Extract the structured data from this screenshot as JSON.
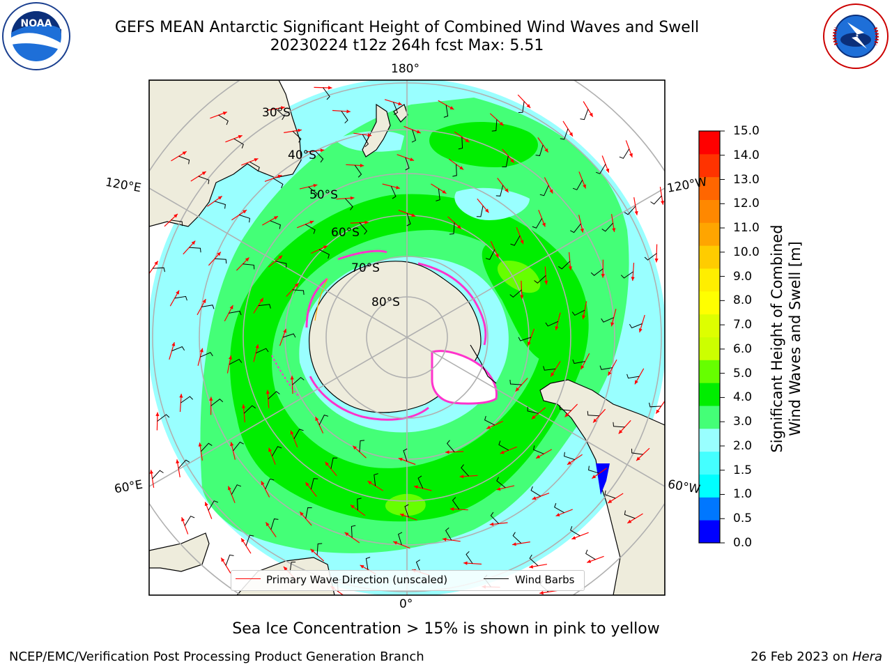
{
  "title": {
    "line1": "GEFS MEAN Antarctic Significant Height of Combined Wind Waves and Swell",
    "line2": "20230224 t12z 264h fcst   Max: 5.51"
  },
  "logos": {
    "left": {
      "name": "NOAA",
      "ring_text": "NATIONAL OCEANIC AND ATMOSPHERIC ADMINISTRATION · U.S. DEPARTMENT OF COMMERCE"
    },
    "right": {
      "name": "NATIONAL WEATHER SERVICE"
    }
  },
  "map": {
    "projection": "south polar stereographic",
    "meridian_labels": {
      "top": "180°",
      "bottom": "0°",
      "upper_left": "120°E",
      "lower_left": "60°E",
      "upper_right": "120°W",
      "lower_right": "60°W"
    },
    "parallel_labels": [
      "30°S",
      "40°S",
      "50°S",
      "60°S",
      "70°S",
      "80°S"
    ],
    "colors": {
      "land": "#eeecdc",
      "ocean_background": "#ffffff",
      "grid": "#b0b0b0",
      "wave_arrow": "#ff0000",
      "wind_barb": "#000000",
      "sea_ice": "#ff33cc"
    }
  },
  "colorbar": {
    "label_line1": "Significant Height of Combined",
    "label_line2": "Wind Waves and Swell [m]",
    "ticks": [
      "15.0",
      "14.0",
      "13.0",
      "12.0",
      "11.0",
      "10.0",
      "9.0",
      "8.0",
      "7.0",
      "6.0",
      "5.0",
      "4.0",
      "3.0",
      "2.0",
      "1.5",
      "1.0",
      "0.5",
      "0.0"
    ],
    "colors": [
      "#0000ff",
      "#0077ff",
      "#00ffff",
      "#44ffff",
      "#99ffff",
      "#44ff77",
      "#00ee00",
      "#66ff00",
      "#ccff00",
      "#ddff00",
      "#ffff00",
      "#ffee00",
      "#ffcc00",
      "#ffa500",
      "#ff8800",
      "#ff6600",
      "#ff3300",
      "#ff0000"
    ]
  },
  "legend": {
    "items": [
      {
        "label": "Primary Wave Direction (unscaled)",
        "color": "#ff0000"
      },
      {
        "label": "Wind Barbs",
        "color": "#000000"
      }
    ]
  },
  "footer": {
    "ice_note": "Sea Ice Concentration > 15% is shown in pink to yellow",
    "left": "NCEP/EMC/Verification Post Processing Product Generation Branch",
    "right_date": "26 Feb 2023 on ",
    "right_host": "Hera"
  },
  "chart_data": {
    "type": "heatmap",
    "title": "GEFS MEAN Antarctic Significant Height of Combined Wind Waves and Swell",
    "max_value": 5.51,
    "units": "m",
    "colorbar_bounds": [
      0.0,
      0.5,
      1.0,
      1.5,
      2.0,
      3.0,
      4.0,
      5.0,
      6.0,
      7.0,
      8.0,
      9.0,
      10.0,
      11.0,
      12.0,
      13.0,
      14.0,
      15.0
    ],
    "legend": [
      "Primary Wave Direction (unscaled)",
      "Wind Barbs"
    ]
  }
}
